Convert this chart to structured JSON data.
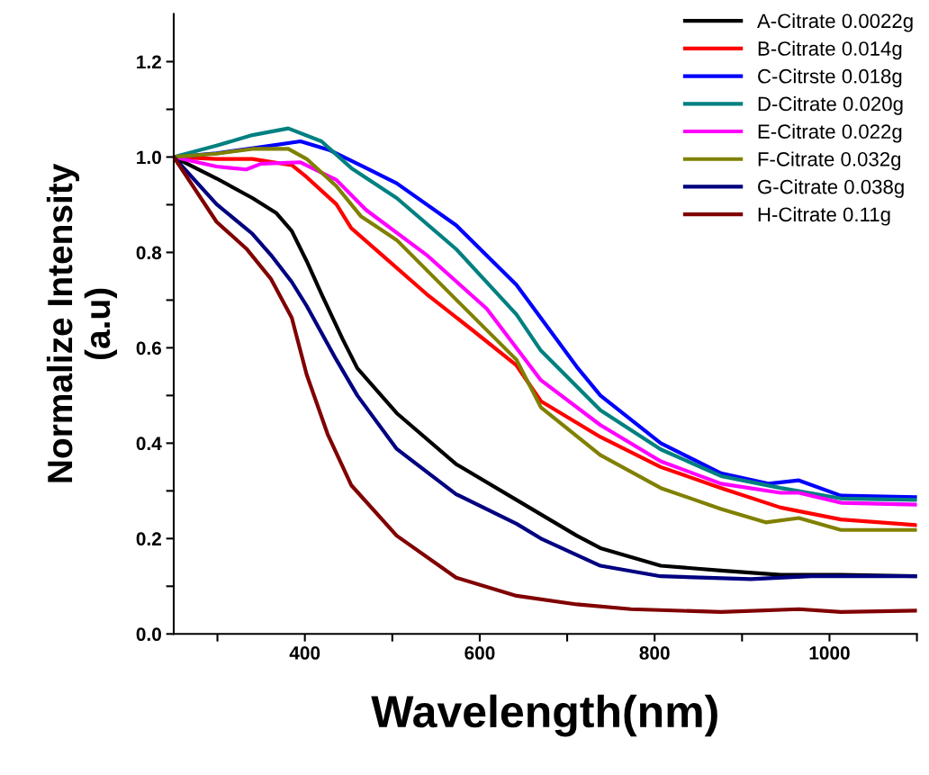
{
  "chart_data": {
    "type": "line",
    "xlabel": "Wavelength(nm)",
    "ylabel": "Normalize Intensity\n(a.u)",
    "xlim": [
      250,
      1100
    ],
    "ylim": [
      0,
      1.3
    ],
    "xticks": [
      {
        "value": 300,
        "label": null
      },
      400,
      {
        "value": 500,
        "label": null
      },
      600,
      {
        "value": 700,
        "label": null
      },
      800,
      {
        "value": 900,
        "label": null
      },
      1000,
      {
        "value": 1100,
        "label": null
      }
    ],
    "yticks": [
      {
        "value": 0,
        "label": "0.0"
      },
      {
        "value": 0.1,
        "label": null
      },
      0.2,
      {
        "value": 0.3,
        "label": null
      },
      0.4,
      {
        "value": 0.5,
        "label": null
      },
      0.6,
      {
        "value": 0.7,
        "label": null
      },
      0.8,
      {
        "value": 0.9,
        "label": null
      },
      {
        "value": 1,
        "label": "1.0"
      },
      {
        "value": 1.1,
        "label": null
      },
      1.2
    ],
    "grid": false,
    "legend": "top right",
    "line_style": "solid",
    "marker": "none",
    "series": [
      {
        "name": "A-Citrate 0.0022g",
        "color": "#000000",
        "x": [
          250,
          299,
          340,
          367,
          385,
          402,
          419,
          443,
          460,
          505,
          573,
          642,
          711,
          738,
          807,
          876,
          944,
          1013,
          1100
        ],
        "values": [
          1.0,
          0.955,
          0.914,
          0.883,
          0.845,
          0.782,
          0.713,
          0.619,
          0.557,
          0.463,
          0.356,
          0.281,
          0.206,
          0.18,
          0.143,
          0.133,
          0.124,
          0.124,
          0.121
        ]
      },
      {
        "name": "B-Citrate 0.014g",
        "color": "#ff0000",
        "x": [
          250,
          299,
          340,
          385,
          402,
          436,
          453,
          488,
          539,
          591,
          642,
          670,
          738,
          807,
          876,
          944,
          1013,
          1100
        ],
        "values": [
          1.0,
          0.996,
          0.996,
          0.983,
          0.958,
          0.901,
          0.851,
          0.795,
          0.713,
          0.638,
          0.563,
          0.488,
          0.413,
          0.35,
          0.306,
          0.265,
          0.24,
          0.228
        ]
      },
      {
        "name": "C-Citrste 0.018g",
        "color": "#0000ff",
        "x": [
          250,
          299,
          350,
          395,
          429,
          470,
          505,
          573,
          642,
          711,
          738,
          807,
          876,
          930,
          965,
          1013,
          1100
        ],
        "values": [
          1.0,
          1.008,
          1.021,
          1.033,
          1.014,
          0.977,
          0.945,
          0.857,
          0.732,
          0.56,
          0.5,
          0.4,
          0.337,
          0.315,
          0.322,
          0.29,
          0.287
        ]
      },
      {
        "name": "D-Citrate 0.020g",
        "color": "#008080",
        "x": [
          250,
          299,
          340,
          381,
          419,
          453,
          505,
          573,
          642,
          670,
          738,
          807,
          876,
          944,
          1013,
          1100
        ],
        "values": [
          1.0,
          1.024,
          1.046,
          1.06,
          1.033,
          0.977,
          0.914,
          0.807,
          0.67,
          0.594,
          0.469,
          0.387,
          0.331,
          0.306,
          0.284,
          0.281
        ]
      },
      {
        "name": "E-Citrate 0.022g",
        "color": "#ff00ff",
        "x": [
          250,
          299,
          333,
          350,
          395,
          436,
          470,
          539,
          608,
          670,
          738,
          807,
          876,
          944,
          965,
          1013,
          1100
        ],
        "values": [
          1.0,
          0.98,
          0.974,
          0.986,
          0.989,
          0.952,
          0.889,
          0.795,
          0.682,
          0.532,
          0.438,
          0.362,
          0.315,
          0.296,
          0.296,
          0.275,
          0.271
        ]
      },
      {
        "name": "F-Citrate 0.032g",
        "color": "#808000",
        "x": [
          250,
          299,
          340,
          381,
          402,
          436,
          464,
          505,
          573,
          642,
          670,
          738,
          807,
          876,
          927,
          965,
          1013,
          1100
        ],
        "values": [
          1.0,
          1.007,
          1.017,
          1.017,
          0.996,
          0.939,
          0.876,
          0.826,
          0.701,
          0.575,
          0.475,
          0.375,
          0.306,
          0.262,
          0.234,
          0.243,
          0.218,
          0.218
        ]
      },
      {
        "name": "G-Citrate 0.038g",
        "color": "#000080",
        "x": [
          250,
          299,
          340,
          361,
          385,
          402,
          436,
          460,
          505,
          573,
          642,
          670,
          738,
          807,
          910,
          979,
          1100
        ],
        "values": [
          1.0,
          0.901,
          0.839,
          0.795,
          0.738,
          0.688,
          0.575,
          0.5,
          0.388,
          0.293,
          0.231,
          0.2,
          0.143,
          0.121,
          0.115,
          0.121,
          0.121
        ]
      },
      {
        "name": "H-Citrate 0.11g",
        "color": "#800000",
        "x": [
          250,
          299,
          333,
          361,
          385,
          402,
          426,
          453,
          505,
          573,
          642,
          711,
          773,
          876,
          965,
          1013,
          1100
        ],
        "values": [
          1.0,
          0.864,
          0.808,
          0.745,
          0.663,
          0.544,
          0.419,
          0.312,
          0.206,
          0.118,
          0.08,
          0.062,
          0.052,
          0.046,
          0.052,
          0.046,
          0.049
        ]
      }
    ]
  }
}
